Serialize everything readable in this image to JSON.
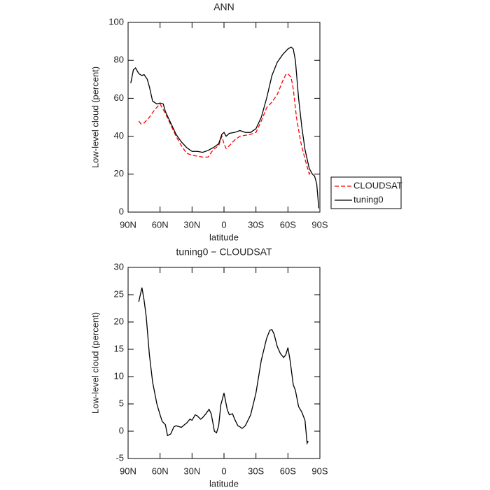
{
  "chart_data": [
    {
      "type": "line",
      "title": "ANN",
      "x_label": "latitude",
      "y_label": "Low-level cloud (percent)",
      "xlim": [
        90,
        -90
      ],
      "ylim": [
        0,
        100
      ],
      "xticks": [
        {
          "value": 90,
          "label": "90N"
        },
        {
          "value": 60,
          "label": "60N"
        },
        {
          "value": 30,
          "label": "30N"
        },
        0,
        {
          "value": -30,
          "label": "30S"
        },
        {
          "value": -60,
          "label": "60S"
        },
        {
          "value": -90,
          "label": "90S"
        }
      ],
      "yticks": [
        0,
        20,
        40,
        60,
        80,
        100
      ],
      "legend": "right",
      "series": [
        {
          "name": "CLOUDSAT",
          "color": "#ff0000",
          "line_style": "dashed",
          "x": [
            80,
            78,
            75,
            70,
            65,
            60,
            55,
            50,
            45,
            40,
            35,
            30,
            25,
            20,
            15,
            10,
            5,
            2,
            0,
            -2,
            -5,
            -10,
            -15,
            -20,
            -25,
            -30,
            -35,
            -40,
            -45,
            -50,
            -55,
            -58,
            -60,
            -63,
            -65,
            -68,
            -72,
            -76,
            -80,
            -81
          ],
          "values": [
            48,
            46.5,
            47,
            50,
            54,
            57,
            52,
            46,
            40,
            35,
            31,
            30,
            29.5,
            29,
            29,
            33,
            35,
            40,
            36,
            33.5,
            35,
            38,
            40,
            40.5,
            41,
            42,
            48,
            55,
            58,
            62,
            69,
            72.5,
            73,
            71,
            65,
            50,
            37,
            28,
            20,
            21
          ]
        },
        {
          "name": "tuning0",
          "color": "#000000",
          "line_style": "solid",
          "x": [
            87.5,
            85,
            83,
            80,
            77,
            75,
            72,
            70,
            67,
            63,
            60,
            57,
            55,
            50,
            45,
            40,
            35,
            30,
            25,
            20,
            15,
            10,
            5,
            2,
            0,
            -2,
            -5,
            -10,
            -15,
            -20,
            -25,
            -30,
            -35,
            -40,
            -45,
            -50,
            -55,
            -60,
            -63,
            -65,
            -67,
            -70,
            -73,
            -76,
            -80,
            -83,
            -85,
            -87,
            -89
          ],
          "values": [
            68,
            75,
            76,
            73,
            72,
            72.5,
            70,
            66,
            58.5,
            57,
            57.5,
            57,
            53,
            47,
            41,
            37,
            34,
            32,
            32,
            31.5,
            32.5,
            34,
            36,
            41,
            42,
            40,
            41.5,
            42,
            43,
            42,
            42,
            44,
            50,
            60,
            72,
            79,
            83,
            86,
            87,
            86,
            80,
            60,
            45,
            33,
            23,
            20,
            19,
            15,
            2
          ]
        }
      ]
    },
    {
      "type": "line",
      "title": "tuning0 − CLOUDSAT",
      "x_label": "latitude",
      "y_label": "Low-level cloud (percent)",
      "xlim": [
        90,
        -90
      ],
      "ylim": [
        -5,
        30
      ],
      "xticks": [
        {
          "value": 90,
          "label": "90N"
        },
        {
          "value": 60,
          "label": "60N"
        },
        {
          "value": 30,
          "label": "30N"
        },
        0,
        {
          "value": -30,
          "label": "30S"
        },
        {
          "value": -60,
          "label": "60S"
        },
        {
          "value": -90,
          "label": "90S"
        }
      ],
      "yticks": [
        -5,
        0,
        5,
        10,
        15,
        20,
        25,
        30
      ],
      "color": "#000000",
      "x": [
        80,
        77,
        75,
        73,
        70,
        67,
        63,
        60,
        58,
        55,
        53,
        50,
        47,
        45,
        40,
        37,
        35,
        32,
        30,
        27,
        25,
        22,
        20,
        17,
        14,
        12,
        9,
        7,
        5,
        3,
        0,
        -3,
        -5,
        -8,
        -10,
        -13,
        -15,
        -17,
        -20,
        -25,
        -30,
        -35,
        -40,
        -43,
        -45,
        -47,
        -50,
        -53,
        -56,
        -58,
        -60,
        -62,
        -65,
        -67,
        -70,
        -73,
        -76,
        -78,
        -79
      ],
      "values": [
        23.7,
        26.3,
        24,
        21,
        14,
        9,
        5,
        3,
        1.8,
        1.2,
        -0.8,
        -0.5,
        0.8,
        1,
        0.7,
        1.2,
        1.5,
        2.2,
        2,
        3,
        2.8,
        2.2,
        2.5,
        3.2,
        4,
        3.2,
        0,
        -0.3,
        1,
        4.8,
        7,
        4,
        3,
        3.2,
        2.2,
        1,
        0.8,
        0.5,
        1,
        3,
        7,
        13,
        17,
        18.5,
        18.6,
        17.8,
        15.5,
        14.2,
        13.5,
        14,
        15.3,
        13,
        8.5,
        7.5,
        4.5,
        3.5,
        2,
        -2.2,
        -1.8
      ]
    }
  ]
}
